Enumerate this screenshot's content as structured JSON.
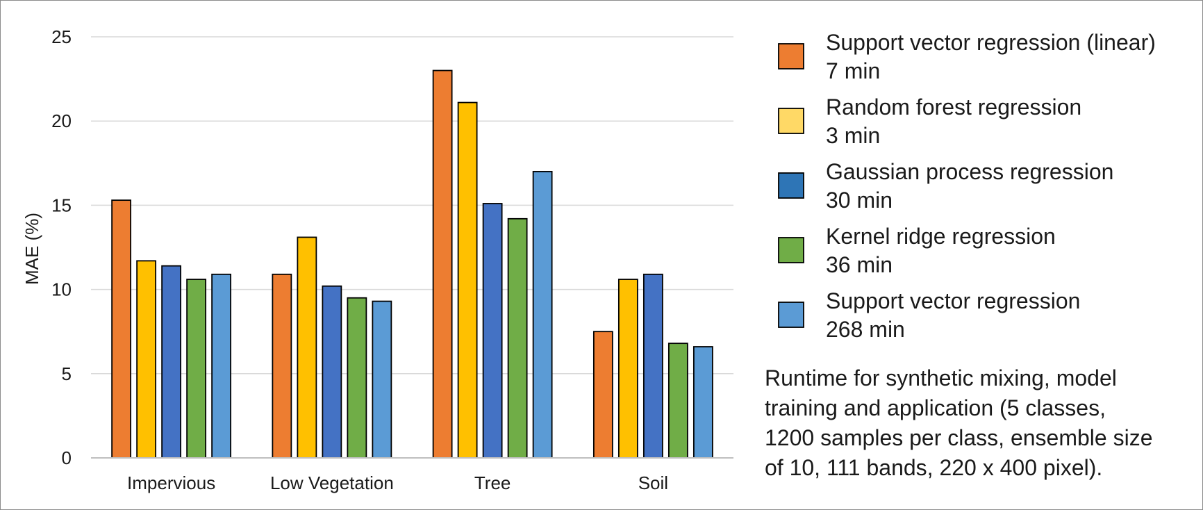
{
  "chart_data": {
    "type": "bar",
    "categories": [
      "Impervious",
      "Low Vegetation",
      "Tree",
      "Soil"
    ],
    "ylabel": "MAE (%)",
    "xlabel": "",
    "ylim": [
      0,
      25
    ],
    "yticks": [
      0,
      5,
      10,
      15,
      20,
      25
    ],
    "grid": true,
    "legend_position": "right",
    "series": [
      {
        "name": "Support vector regression (linear)",
        "runtime": "7 min",
        "color": "#ed7d31",
        "values": [
          15.3,
          10.9,
          23.0,
          7.5
        ]
      },
      {
        "name": "Random forest regression",
        "runtime": "3 min",
        "color": "#ffc000",
        "values": [
          11.7,
          13.1,
          21.1,
          10.6
        ]
      },
      {
        "name": "Gaussian process regression",
        "runtime": "30 min",
        "color": "#4472c4",
        "values": [
          11.4,
          10.2,
          15.1,
          10.9
        ]
      },
      {
        "name": "Kernel ridge regression",
        "runtime": "36 min",
        "color": "#70ad47",
        "values": [
          10.6,
          9.5,
          14.2,
          6.8
        ]
      },
      {
        "name": "Support vector regression",
        "runtime": "268 min",
        "color": "#5b9bd5",
        "values": [
          10.9,
          9.3,
          17.0,
          6.6
        ]
      }
    ],
    "legend_swatch_colors": [
      "#ed7d31",
      "#ffd966",
      "#2e75b6",
      "#70ad47",
      "#5b9bd5"
    ],
    "note": [
      "Runtime for synthetic mixing, model",
      "training and application (5 classes,",
      "1200 samples per class, ensemble size",
      "of 10, 111 bands, 220 x 400 pixel)."
    ]
  }
}
